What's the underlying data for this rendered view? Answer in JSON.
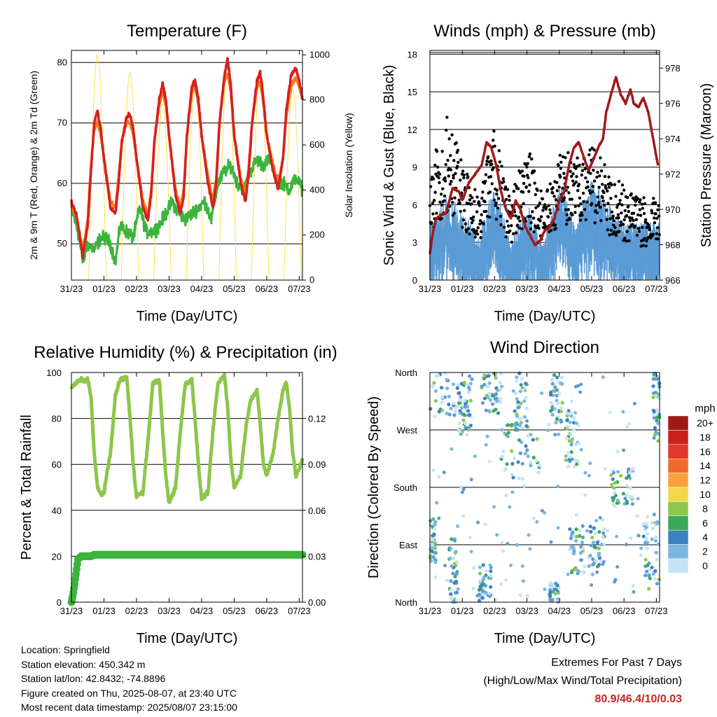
{
  "info": {
    "location": "Location: Springfield",
    "elevation": "Station elevation: 450.342 m",
    "latlon": "Station lat/lon: 42.8432; -74.8896",
    "created": "Figure created on Thu, 2025-08-07, at 23:40 UTC",
    "recent": "Most recent data timestamp: 2025/08/07 23:15:00"
  },
  "extremes": {
    "title": "Extremes For Past 7 Days",
    "subtitle": "(High/Low/Max Wind/Total Precipitation)",
    "values": "80.9/46.4/10/0.03",
    "color": "#cc2222"
  },
  "chart_data": [
    {
      "id": "temperature",
      "type": "line",
      "title": "Temperature (F)",
      "xlabel": "Time (Day/UTC)",
      "ylabel": "2m & 9m T (Red, Orange) & 2m Td (Green)",
      "ylabel_right": "Solar Insolation (Yellow)",
      "x_ticks": [
        "31/23",
        "01/23",
        "02/23",
        "03/23",
        "04/23",
        "05/23",
        "06/23",
        "07/23"
      ],
      "y_ticks": [
        50,
        60,
        70,
        80
      ],
      "y_ticks_right": [
        0,
        200,
        400,
        600,
        800,
        1000
      ],
      "ylim": [
        44,
        82
      ],
      "ylim_right": [
        0,
        1020
      ],
      "xlim": [
        0,
        7.1
      ],
      "grid": true,
      "series": [
        {
          "color": "#d42020",
          "x": [
            0,
            0.15,
            0.35,
            0.5,
            0.6,
            0.7,
            0.8,
            0.9,
            1.0,
            1.2,
            1.35,
            1.45,
            1.55,
            1.7,
            1.8,
            1.9,
            2.0,
            2.2,
            2.35,
            2.45,
            2.55,
            2.7,
            2.8,
            2.9,
            3.0,
            3.2,
            3.35,
            3.45,
            3.55,
            3.7,
            3.8,
            3.9,
            4.0,
            4.2,
            4.35,
            4.45,
            4.55,
            4.7,
            4.8,
            4.9,
            5.0,
            5.2,
            5.35,
            5.45,
            5.55,
            5.7,
            5.8,
            5.9,
            6.0,
            6.2,
            6.35,
            6.5,
            6.6,
            6.75,
            6.9,
            7.0,
            7.1
          ],
          "y": [
            57,
            55,
            48,
            53,
            62,
            70,
            72,
            69,
            64,
            56,
            55,
            60,
            67,
            71,
            71.5,
            69,
            64,
            56,
            54,
            58,
            67,
            74,
            76.5,
            74,
            68,
            58,
            55,
            58,
            68,
            76,
            77,
            74,
            68,
            60,
            56,
            60,
            70,
            78,
            80.5,
            76,
            68,
            60,
            57,
            62,
            70,
            77,
            78.5,
            74,
            68,
            62,
            59,
            64,
            72,
            78,
            79,
            77,
            74
          ]
        },
        {
          "color": "#ff7a1a",
          "x": [
            0,
            0.15,
            0.35,
            0.5,
            0.6,
            0.7,
            0.8,
            0.9,
            1.0,
            1.2,
            1.35,
            1.45,
            1.55,
            1.7,
            1.8,
            1.9,
            2.0,
            2.2,
            2.35,
            2.45,
            2.55,
            2.7,
            2.8,
            2.9,
            3.0,
            3.2,
            3.35,
            3.45,
            3.55,
            3.7,
            3.8,
            3.9,
            4.0,
            4.2,
            4.35,
            4.45,
            4.55,
            4.7,
            4.8,
            4.9,
            5.0,
            5.2,
            5.35,
            5.45,
            5.55,
            5.7,
            5.8,
            5.9,
            6.0,
            6.2,
            6.35,
            6.5,
            6.6,
            6.75,
            6.9,
            7.0,
            7.1
          ],
          "y": [
            56.5,
            54.5,
            49,
            54,
            63,
            69,
            70,
            68,
            64,
            57,
            56,
            61,
            67,
            70,
            70,
            68,
            64,
            57,
            55,
            59,
            67,
            73,
            75,
            73,
            68,
            59,
            56,
            59,
            68,
            75,
            76,
            73,
            68,
            61,
            57,
            61,
            70,
            77,
            78,
            75,
            68,
            61,
            58,
            63,
            70,
            76,
            77,
            73,
            68,
            63,
            60,
            64,
            71,
            76,
            77.5,
            76,
            74
          ]
        },
        {
          "color": "#3cb43c",
          "x": [
            0,
            0.2,
            0.35,
            0.5,
            0.7,
            0.9,
            1.05,
            1.2,
            1.35,
            1.5,
            1.7,
            1.9,
            2.1,
            2.3,
            2.5,
            2.7,
            2.9,
            3.1,
            3.3,
            3.5,
            3.7,
            3.9,
            4.1,
            4.3,
            4.5,
            4.7,
            4.9,
            5.1,
            5.3,
            5.5,
            5.7,
            5.9,
            6.1,
            6.3,
            6.5,
            6.7,
            6.9,
            7.1
          ],
          "y": [
            56,
            52,
            47,
            50,
            49,
            51,
            51,
            50,
            47,
            53,
            52,
            51,
            56,
            52,
            52,
            53,
            55,
            57,
            55,
            54,
            55,
            56,
            57,
            54,
            60,
            62,
            63,
            60,
            59,
            62,
            64,
            63,
            64,
            61,
            60,
            59,
            61,
            59
          ]
        }
      ],
      "series_right": [
        {
          "color": "#ffe050",
          "days": [
            0.8,
            1.8,
            2.8,
            3.8,
            4.8,
            5.8,
            6.8
          ],
          "peaks": [
            1000,
            920,
            780,
            880,
            970,
            920,
            850
          ]
        }
      ]
    },
    {
      "id": "winds",
      "type": "scatter",
      "title": "Winds (mph) & Pressure (mb)",
      "xlabel": "Time (Day/UTC)",
      "ylabel": "Sonic Wind & Gust (Blue, Black)",
      "ylabel_right": "Station Pressure (Maroon)",
      "x_ticks": [
        "31/23",
        "01/23",
        "02/23",
        "03/23",
        "04/23",
        "05/23",
        "06/23",
        "07/23"
      ],
      "y_ticks": [
        0,
        3,
        6,
        9,
        12,
        15,
        18
      ],
      "y_ticks_right": [
        966,
        968,
        970,
        972,
        974,
        976,
        978
      ],
      "ylim": [
        0,
        18.3
      ],
      "ylim_right": [
        966,
        979
      ],
      "xlim": [
        0,
        7.1
      ],
      "grid": true,
      "wind_envelope": {
        "x": [
          0,
          0.5,
          1.0,
          1.5,
          2.0,
          2.5,
          3.0,
          3.5,
          4.0,
          4.5,
          5.0,
          5.5,
          6.0,
          6.5,
          7.0,
          7.1
        ],
        "y": [
          4,
          6,
          5,
          3,
          7,
          2.5,
          5.5,
          2.5,
          7,
          4,
          7,
          5.5,
          4,
          4,
          4,
          4
        ]
      },
      "gust_envelope": {
        "x": [
          0,
          0.5,
          1.0,
          1.5,
          2.0,
          2.5,
          3.0,
          3.5,
          4.0,
          4.5,
          5.0,
          5.5,
          6.0,
          6.5,
          7.0,
          7.1
        ],
        "y": [
          8,
          12,
          9,
          6,
          11,
          6,
          10,
          6,
          10,
          9,
          10,
          8,
          7,
          6,
          6,
          6
        ]
      },
      "series": [
        {
          "name": "pressure",
          "color": "#a01a1a",
          "x": [
            0,
            0.1,
            0.2,
            0.35,
            0.5,
            0.7,
            0.9,
            1.0,
            1.2,
            1.4,
            1.6,
            1.75,
            1.9,
            2.05,
            2.2,
            2.35,
            2.5,
            2.65,
            2.8,
            2.95,
            3.1,
            3.25,
            3.4,
            3.55,
            3.7,
            3.85,
            4.0,
            4.15,
            4.3,
            4.45,
            4.6,
            4.75,
            4.9,
            5.05,
            5.2,
            5.35,
            5.45,
            5.6,
            5.75,
            5.9,
            6.05,
            6.2,
            6.3,
            6.45,
            6.6,
            6.75,
            6.9,
            7.05
          ],
          "y": [
            967.5,
            968.8,
            969.5,
            969.7,
            969.8,
            971.2,
            971.0,
            970.5,
            971.5,
            972.0,
            972.5,
            973.8,
            973.5,
            972.5,
            971.0,
            970.0,
            969.5,
            970.5,
            970.0,
            969.0,
            968.5,
            968.0,
            968.2,
            968.8,
            969.0,
            969.5,
            970.5,
            971.0,
            972.5,
            973.5,
            973.8,
            973.0,
            972.2,
            972.8,
            973.5,
            974.0,
            975.5,
            976.5,
            977.5,
            976.5,
            976.0,
            976.8,
            976.0,
            975.8,
            976.3,
            975.5,
            974.0,
            972.5
          ]
        }
      ]
    },
    {
      "id": "humidity",
      "type": "line",
      "title": "Relative Humidity (%) & Precipitation (in)",
      "xlabel": "Time (Day/UTC)",
      "ylabel": "Percent & Total Rainfall",
      "x_ticks": [
        "31/23",
        "01/23",
        "02/23",
        "03/23",
        "04/23",
        "05/23",
        "06/23",
        "07/23"
      ],
      "y_ticks": [
        0,
        20,
        40,
        60,
        80,
        100
      ],
      "y_ticks_right": [
        "0.00",
        "0.03",
        "0.06",
        "0.09",
        "0.12"
      ],
      "ylim": [
        0,
        100
      ],
      "ylim_right": [
        0,
        0.15
      ],
      "xlim": [
        0,
        7.1
      ],
      "grid": true,
      "series": [
        {
          "name": "rh",
          "color": "#8dc64a",
          "x": [
            0,
            0.1,
            0.2,
            0.3,
            0.4,
            0.5,
            0.6,
            0.7,
            0.8,
            0.9,
            1.0,
            1.2,
            1.35,
            1.5,
            1.7,
            1.8,
            1.9,
            2.0,
            2.2,
            2.35,
            2.5,
            2.7,
            2.8,
            2.9,
            3.0,
            3.2,
            3.35,
            3.5,
            3.7,
            3.8,
            3.9,
            4.0,
            4.2,
            4.35,
            4.5,
            4.7,
            4.8,
            4.9,
            5.0,
            5.2,
            5.35,
            5.5,
            5.7,
            5.8,
            5.9,
            6.0,
            6.2,
            6.35,
            6.5,
            6.6,
            6.7,
            6.8,
            6.9,
            7.0,
            7.1
          ],
          "y": [
            93,
            95,
            96,
            97,
            96,
            97,
            90,
            65,
            50,
            47,
            48,
            65,
            90,
            97,
            98,
            80,
            60,
            46,
            48,
            70,
            95,
            97,
            75,
            55,
            43,
            50,
            75,
            95,
            97,
            80,
            60,
            45,
            48,
            75,
            95,
            99,
            85,
            62,
            50,
            55,
            75,
            88,
            92,
            78,
            60,
            55,
            65,
            80,
            92,
            96,
            85,
            65,
            55,
            58,
            62
          ]
        },
        {
          "name": "precip",
          "color": "#3cb43c",
          "x": [
            0,
            0.05,
            0.1,
            0.15,
            0.2,
            0.3,
            0.5,
            0.6,
            0.7,
            1.0,
            2.0,
            3.0,
            4.0,
            5.0,
            6.0,
            7.1
          ],
          "y": [
            0,
            0.005,
            0.012,
            0.02,
            0.028,
            0.03,
            0.03,
            0.03,
            0.031,
            0.031,
            0.031,
            0.031,
            0.031,
            0.031,
            0.031,
            0.031
          ]
        }
      ]
    },
    {
      "id": "wind-direction",
      "type": "scatter",
      "title": "Wind Direction",
      "xlabel": "Time (Day/UTC)",
      "ylabel": "Direction (Colored By Speed)",
      "x_ticks": [
        "31/23",
        "01/23",
        "02/23",
        "03/23",
        "04/23",
        "05/23",
        "06/23",
        "07/23"
      ],
      "y_ticks": [
        "North",
        "East",
        "South",
        "West",
        "North"
      ],
      "ylim": [
        0,
        360
      ],
      "xlim": [
        0,
        7.1
      ],
      "grid": true,
      "colorbar": {
        "unit": "mph",
        "labels": [
          "20+",
          "18",
          "16",
          "14",
          "12",
          "10",
          "8",
          "6",
          "4",
          "2",
          "0"
        ],
        "colors": [
          "#9e1a1a",
          "#c8201f",
          "#e0382a",
          "#f06a2c",
          "#f8a03a",
          "#f0d84a",
          "#8cc84a",
          "#3ca85a",
          "#3c82c0",
          "#7ab6e0",
          "#c4e4f6"
        ]
      },
      "clusters": [
        {
          "x": [
            0,
            1.0
          ],
          "y": [
            290,
            360
          ]
        },
        {
          "x": [
            0,
            0.2
          ],
          "y": [
            60,
            130
          ]
        },
        {
          "x": [
            0.6,
            0.9
          ],
          "y": [
            0,
            100
          ]
        },
        {
          "x": [
            0.9,
            1.3
          ],
          "y": [
            260,
            350
          ]
        },
        {
          "x": [
            1.5,
            1.9
          ],
          "y": [
            0,
            60
          ]
        },
        {
          "x": [
            1.6,
            2.2
          ],
          "y": [
            290,
            360
          ]
        },
        {
          "x": [
            2.2,
            3.4
          ],
          "y": [
            180,
            280
          ]
        },
        {
          "x": [
            2.6,
            3.0
          ],
          "y": [
            270,
            360
          ]
        },
        {
          "x": [
            3.7,
            4.1
          ],
          "y": [
            280,
            360
          ]
        },
        {
          "x": [
            3.7,
            4.0
          ],
          "y": [
            0,
            30
          ]
        },
        {
          "x": [
            4.2,
            4.6
          ],
          "y": [
            210,
            300
          ]
        },
        {
          "x": [
            4.3,
            4.8
          ],
          "y": [
            40,
            120
          ]
        },
        {
          "x": [
            4.9,
            5.4
          ],
          "y": [
            50,
            120
          ]
        },
        {
          "x": [
            5.6,
            6.3
          ],
          "y": [
            150,
            210
          ]
        },
        {
          "x": [
            6.6,
            7.1
          ],
          "y": [
            20,
            130
          ]
        },
        {
          "x": [
            6.9,
            7.1
          ],
          "y": [
            250,
            360
          ]
        }
      ]
    }
  ]
}
